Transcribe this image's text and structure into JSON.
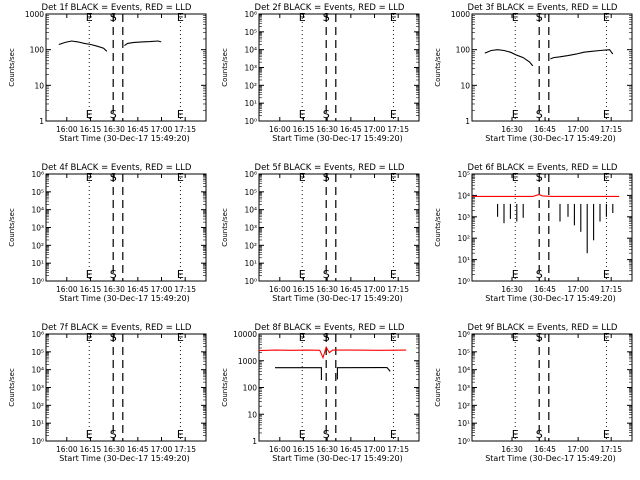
{
  "chart_data": [
    {
      "type": "line",
      "title": "Det 1f BLACK = Events, RED = LLD",
      "xlabel": "Start Time (30-Dec-17 15:49:20)",
      "ylabel": "Counts/sec",
      "xticks": [
        "16:00",
        "16:15",
        "16:30",
        "16:45",
        "17:00",
        "17:15"
      ],
      "yscale": "log",
      "ylim": [
        1,
        1000
      ],
      "yticks": [
        {
          "v": 1,
          "t": "1"
        },
        {
          "v": 10,
          "t": "10"
        },
        {
          "v": 100,
          "t": "100"
        },
        {
          "v": 1000,
          "t": "1000"
        }
      ],
      "markers": [
        {
          "t": 27,
          "label": "E",
          "style": "dotted"
        },
        {
          "t": 42,
          "label": "S",
          "style": "dashed"
        },
        {
          "t": 48,
          "label": "",
          "style": "dashed"
        },
        {
          "t": 84,
          "label": "E",
          "style": "dotted"
        }
      ],
      "series": [
        {
          "color": "#000000",
          "segments": [
            [
              [
                8,
                140
              ],
              [
                12,
                160
              ],
              [
                16,
                175
              ],
              [
                20,
                165
              ],
              [
                24,
                150
              ],
              [
                28,
                140
              ],
              [
                32,
                125
              ],
              [
                36,
                110
              ],
              [
                38,
                90
              ]
            ],
            [
              [
                49,
                130
              ],
              [
                51,
                150
              ],
              [
                55,
                160
              ],
              [
                60,
                165
              ],
              [
                65,
                168
              ],
              [
                70,
                175
              ],
              [
                72,
                165
              ]
            ]
          ]
        }
      ]
    },
    {
      "type": "line",
      "title": "Det 2f BLACK = Events, RED = LLD",
      "xlabel": "Start Time (30-Dec-17 15:49:20)",
      "ylabel": "Counts/sec",
      "xticks": [
        "16:00",
        "16:15",
        "16:30",
        "16:45",
        "17:00",
        "17:15"
      ],
      "yscale": "log",
      "ylim": [
        1,
        1000000
      ],
      "yticks": [
        {
          "v": 1,
          "t": "10⁰"
        },
        {
          "v": 10,
          "t": "10¹"
        },
        {
          "v": 100,
          "t": "10²"
        },
        {
          "v": 1000,
          "t": "10³"
        },
        {
          "v": 10000,
          "t": "10⁴"
        },
        {
          "v": 100000,
          "t": "10⁵"
        },
        {
          "v": 1000000,
          "t": "10⁶"
        }
      ],
      "markers": [
        {
          "t": 27,
          "label": "E",
          "style": "dotted"
        },
        {
          "t": 42,
          "label": "S",
          "style": "dashed"
        },
        {
          "t": 48,
          "label": "",
          "style": "dashed"
        },
        {
          "t": 84,
          "label": "E",
          "style": "dotted"
        }
      ],
      "series": []
    },
    {
      "type": "line",
      "title": "Det 3f BLACK = Events, RED = LLD",
      "xlabel": "Start Time (30-Dec-17 15:49:20)",
      "ylabel": "Counts/sec",
      "xticks": [
        "16:30",
        "16:45",
        "17:00",
        "17:15"
      ],
      "yscale": "log",
      "ylim": [
        1,
        1000
      ],
      "yticks": [
        {
          "v": 1,
          "t": "1"
        },
        {
          "v": 10,
          "t": "10"
        },
        {
          "v": 100,
          "t": "100"
        },
        {
          "v": 1000,
          "t": "1000"
        }
      ],
      "markers": [
        {
          "t": 27,
          "label": "E",
          "style": "dotted"
        },
        {
          "t": 42,
          "label": "S",
          "style": "dashed"
        },
        {
          "t": 48,
          "label": "",
          "style": "dashed"
        },
        {
          "t": 84,
          "label": "E",
          "style": "dotted"
        }
      ],
      "series": [
        {
          "color": "#000000",
          "segments": [
            [
              [
                8,
                80
              ],
              [
                12,
                95
              ],
              [
                16,
                100
              ],
              [
                20,
                95
              ],
              [
                24,
                85
              ],
              [
                28,
                70
              ],
              [
                32,
                60
              ],
              [
                36,
                45
              ],
              [
                38,
                35
              ]
            ],
            [
              [
                49,
                55
              ],
              [
                51,
                60
              ],
              [
                55,
                63
              ],
              [
                60,
                68
              ],
              [
                65,
                75
              ],
              [
                70,
                85
              ],
              [
                75,
                90
              ],
              [
                80,
                95
              ],
              [
                86,
                100
              ],
              [
                88,
                75
              ]
            ]
          ]
        }
      ]
    },
    {
      "type": "line",
      "title": "Det 4f BLACK = Events, RED = LLD",
      "xlabel": "Start Time (30-Dec-17 15:49:20)",
      "ylabel": "Counts/sec",
      "xticks": [
        "16:00",
        "16:15",
        "16:30",
        "16:45",
        "17:00",
        "17:15"
      ],
      "yscale": "log",
      "ylim": [
        1,
        1000000
      ],
      "yticks": [
        {
          "v": 1,
          "t": "10⁰"
        },
        {
          "v": 10,
          "t": "10¹"
        },
        {
          "v": 100,
          "t": "10²"
        },
        {
          "v": 1000,
          "t": "10³"
        },
        {
          "v": 10000,
          "t": "10⁴"
        },
        {
          "v": 100000,
          "t": "10⁵"
        },
        {
          "v": 1000000,
          "t": "10⁶"
        }
      ],
      "markers": [
        {
          "t": 27,
          "label": "E",
          "style": "dotted"
        },
        {
          "t": 42,
          "label": "S",
          "style": "dashed"
        },
        {
          "t": 48,
          "label": "",
          "style": "dashed"
        },
        {
          "t": 84,
          "label": "E",
          "style": "dotted"
        }
      ],
      "series": []
    },
    {
      "type": "line",
      "title": "Det 5f BLACK = Events, RED = LLD",
      "xlabel": "Start Time (30-Dec-17 15:49:20)",
      "ylabel": "Counts/sec",
      "xticks": [
        "16:00",
        "16:15",
        "16:30",
        "16:45",
        "17:00",
        "17:15"
      ],
      "yscale": "log",
      "ylim": [
        1,
        1000000
      ],
      "yticks": [
        {
          "v": 1,
          "t": "10⁰"
        },
        {
          "v": 10,
          "t": "10¹"
        },
        {
          "v": 100,
          "t": "10²"
        },
        {
          "v": 1000,
          "t": "10³"
        },
        {
          "v": 10000,
          "t": "10⁴"
        },
        {
          "v": 100000,
          "t": "10⁵"
        },
        {
          "v": 1000000,
          "t": "10⁶"
        }
      ],
      "markers": [
        {
          "t": 27,
          "label": "E",
          "style": "dotted"
        },
        {
          "t": 42,
          "label": "S",
          "style": "dashed"
        },
        {
          "t": 48,
          "label": "",
          "style": "dashed"
        },
        {
          "t": 84,
          "label": "E",
          "style": "dotted"
        }
      ],
      "series": []
    },
    {
      "type": "line",
      "title": "Det 6f BLACK = Events, RED = LLD",
      "xlabel": "Start Time (30-Dec-17 15:49:20)",
      "ylabel": "Counts/sec",
      "xticks": [
        "16:30",
        "16:45",
        "17:00",
        "17:15"
      ],
      "yscale": "log",
      "ylim": [
        1,
        100000
      ],
      "yticks": [
        {
          "v": 1,
          "t": "10⁰"
        },
        {
          "v": 10,
          "t": "10¹"
        },
        {
          "v": 100,
          "t": "10²"
        },
        {
          "v": 1000,
          "t": "10³"
        },
        {
          "v": 10000,
          "t": "10⁴"
        },
        {
          "v": 100000,
          "t": "10⁵"
        }
      ],
      "markers": [
        {
          "t": 27,
          "label": "E",
          "style": "dotted"
        },
        {
          "t": 42,
          "label": "S",
          "style": "dashed"
        },
        {
          "t": 48,
          "label": "",
          "style": "dashed"
        },
        {
          "t": 84,
          "label": "E",
          "style": "dotted"
        }
      ],
      "series": [
        {
          "color": "#ff0000",
          "segments": [
            [
              [
                0,
                9000
              ],
              [
                38,
                9000
              ],
              [
                42,
                11000
              ],
              [
                44,
                9500
              ],
              [
                50,
                9000
              ],
              [
                92,
                9000
              ]
            ]
          ]
        },
        {
          "color": "#000000",
          "segments": [
            [
              [
                16,
                4000
              ],
              [
                16,
                1000
              ]
            ],
            [
              [
                20,
                4000
              ],
              [
                20,
                500
              ]
            ],
            [
              [
                24,
                4000
              ],
              [
                24,
                800
              ]
            ],
            [
              [
                28,
                4000
              ],
              [
                28,
                600
              ]
            ],
            [
              [
                32,
                4000
              ],
              [
                32,
                900
              ]
            ],
            [
              [
                55,
                4000
              ],
              [
                55,
                600
              ]
            ],
            [
              [
                60,
                4000
              ],
              [
                60,
                1000
              ]
            ],
            [
              [
                64,
                4000
              ],
              [
                64,
                400
              ]
            ],
            [
              [
                68,
                4000
              ],
              [
                68,
                200
              ]
            ],
            [
              [
                72,
                4000
              ],
              [
                72,
                20
              ]
            ],
            [
              [
                76,
                4000
              ],
              [
                76,
                80
              ]
            ],
            [
              [
                80,
                4000
              ],
              [
                80,
                600
              ]
            ],
            [
              [
                84,
                4000
              ],
              [
                84,
                1000
              ]
            ],
            [
              [
                88,
                4000
              ],
              [
                88,
                1500
              ]
            ]
          ]
        }
      ]
    },
    {
      "type": "line",
      "title": "Det 7f BLACK = Events, RED = LLD",
      "xlabel": "Start Time (30-Dec-17 15:49:20)",
      "ylabel": "Counts/sec",
      "xticks": [
        "16:00",
        "16:15",
        "16:30",
        "16:45",
        "17:00",
        "17:15"
      ],
      "yscale": "log",
      "ylim": [
        1,
        1000000
      ],
      "yticks": [
        {
          "v": 1,
          "t": "10⁰"
        },
        {
          "v": 10,
          "t": "10¹"
        },
        {
          "v": 100,
          "t": "10²"
        },
        {
          "v": 1000,
          "t": "10³"
        },
        {
          "v": 10000,
          "t": "10⁴"
        },
        {
          "v": 100000,
          "t": "10⁵"
        },
        {
          "v": 1000000,
          "t": "10⁶"
        }
      ],
      "markers": [
        {
          "t": 27,
          "label": "E",
          "style": "dotted"
        },
        {
          "t": 42,
          "label": "S",
          "style": "dashed"
        },
        {
          "t": 48,
          "label": "",
          "style": "dashed"
        },
        {
          "t": 84,
          "label": "E",
          "style": "dotted"
        }
      ],
      "series": []
    },
    {
      "type": "line",
      "title": "Det 8f BLACK = Events, RED = LLD",
      "xlabel": "Start Time (30-Dec-17 15:49:20)",
      "ylabel": "Counts/sec",
      "xticks": [
        "16:00",
        "16:15",
        "16:30",
        "16:45",
        "17:00",
        "17:15"
      ],
      "yscale": "log",
      "ylim": [
        1,
        10000
      ],
      "yticks": [
        {
          "v": 1,
          "t": "1"
        },
        {
          "v": 10,
          "t": "10"
        },
        {
          "v": 100,
          "t": "100"
        },
        {
          "v": 1000,
          "t": "1000"
        },
        {
          "v": 10000,
          "t": "10000"
        }
      ],
      "markers": [
        {
          "t": 27,
          "label": "E",
          "style": "dotted"
        },
        {
          "t": 42,
          "label": "S",
          "style": "dashed"
        },
        {
          "t": 48,
          "label": "",
          "style": "dashed"
        },
        {
          "t": 84,
          "label": "E",
          "style": "dotted"
        }
      ],
      "series": [
        {
          "color": "#ff0000",
          "segments": [
            [
              [
                0,
                2400
              ],
              [
                10,
                2500
              ],
              [
                20,
                2450
              ],
              [
                30,
                2500
              ],
              [
                38,
                2450
              ],
              [
                40,
                1300
              ],
              [
                42,
                3200
              ],
              [
                44,
                2000
              ],
              [
                46,
                2500
              ],
              [
                60,
                2500
              ],
              [
                75,
                2450
              ],
              [
                92,
                2500
              ]
            ]
          ]
        },
        {
          "color": "#000000",
          "segments": [
            [
              [
                10,
                550
              ],
              [
                39,
                550
              ],
              [
                39,
                190
              ]
            ],
            [
              [
                49,
                200
              ],
              [
                49,
                550
              ],
              [
                80,
                560
              ],
              [
                82,
                400
              ]
            ]
          ]
        }
      ]
    },
    {
      "type": "line",
      "title": "Det 9f BLACK = Events, RED = LLD",
      "xlabel": "Start Time (30-Dec-17 15:49:20)",
      "ylabel": "Counts/sec",
      "xticks": [
        "16:30",
        "16:45",
        "17:00",
        "17:15"
      ],
      "yscale": "log",
      "ylim": [
        1,
        1000000
      ],
      "yticks": [
        {
          "v": 1,
          "t": "10⁰"
        },
        {
          "v": 10,
          "t": "10¹"
        },
        {
          "v": 100,
          "t": "10²"
        },
        {
          "v": 1000,
          "t": "10³"
        },
        {
          "v": 10000,
          "t": "10⁴"
        },
        {
          "v": 100000,
          "t": "10⁵"
        },
        {
          "v": 1000000,
          "t": "10⁶"
        }
      ],
      "markers": [
        {
          "t": 27,
          "label": "E",
          "style": "dotted"
        },
        {
          "t": 42,
          "label": "S",
          "style": "dashed"
        },
        {
          "t": 48,
          "label": "",
          "style": "dashed"
        },
        {
          "t": 84,
          "label": "E",
          "style": "dotted"
        }
      ],
      "series": []
    }
  ]
}
